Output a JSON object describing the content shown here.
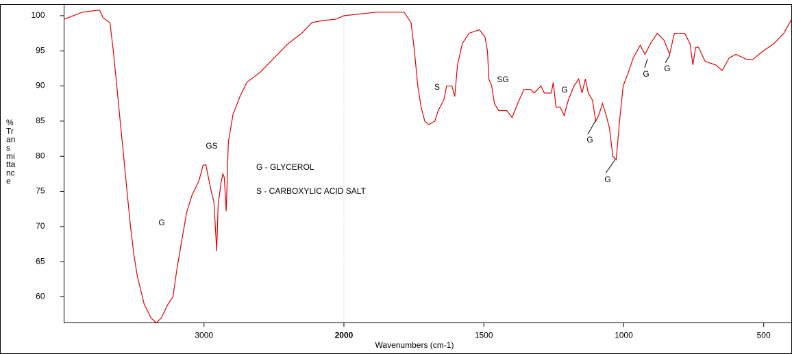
{
  "chart_data": {
    "type": "line",
    "xlabel": "Wavenumbers (cm-1)",
    "ylabel_lines": [
      "%",
      "Tr",
      "an",
      "s",
      "mi",
      "tta",
      "nc",
      "e"
    ],
    "xlim": [
      4000,
      400
    ],
    "x_scale_break": 2000,
    "xticks": [
      3000,
      2000,
      1500,
      1000,
      500
    ],
    "ylim": [
      56.3,
      101.6
    ],
    "yticks": [
      60,
      65,
      70,
      75,
      80,
      85,
      90,
      95,
      100
    ],
    "color": "#e00000",
    "x": [
      4000,
      3868,
      3746,
      3721,
      3672,
      3648,
      3623,
      3599,
      3574,
      3550,
      3525,
      3501,
      3477,
      3428,
      3379,
      3340,
      3305,
      3256,
      3222,
      3193,
      3159,
      3124,
      3085,
      3036,
      3007,
      2987,
      2948,
      2929,
      2909,
      2899,
      2880,
      2865,
      2855,
      2841,
      2826,
      2792,
      2743,
      2694,
      2596,
      2498,
      2400,
      2302,
      2229,
      2156,
      2058,
      2000,
      1883,
      1785,
      1760,
      1748,
      1736,
      1724,
      1711,
      1697,
      1675,
      1663,
      1643,
      1633,
      1614,
      1604,
      1594,
      1577,
      1553,
      1516,
      1496,
      1487,
      1482,
      1472,
      1462,
      1447,
      1418,
      1399,
      1379,
      1357,
      1333,
      1320,
      1296,
      1284,
      1259,
      1252,
      1242,
      1227,
      1213,
      1198,
      1178,
      1161,
      1149,
      1137,
      1127,
      1112,
      1100,
      1088,
      1076,
      1064,
      1051,
      1039,
      1027,
      1015,
      1002,
      983,
      966,
      941,
      924,
      905,
      880,
      856,
      836,
      819,
      782,
      763,
      753,
      743,
      733,
      709,
      672,
      648,
      623,
      599,
      562,
      538,
      501,
      464,
      428,
      400
    ],
    "values": [
      99.5,
      100.5,
      100.8,
      99.7,
      99,
      95,
      90,
      85,
      80,
      75,
      70,
      66,
      63,
      59,
      57,
      56.3,
      57,
      59,
      60,
      64,
      68,
      72,
      74.5,
      76.5,
      78.7,
      78.8,
      75,
      73.5,
      66.5,
      73,
      76,
      77.5,
      77,
      72.2,
      82,
      86,
      88.5,
      90.5,
      92,
      94,
      96,
      97.5,
      99,
      99.3,
      99.5,
      100,
      100.5,
      100.5,
      99,
      95,
      90,
      87,
      85,
      84.5,
      85,
      86.5,
      88,
      90,
      90,
      88.5,
      93,
      96,
      97.5,
      98,
      97,
      95,
      91,
      90,
      87.5,
      86.5,
      86.5,
      85.5,
      87.5,
      89.5,
      89.5,
      89,
      90,
      89,
      89,
      90.5,
      87,
      87,
      85.8,
      88,
      90,
      91,
      89,
      91,
      89,
      88,
      85,
      86,
      87.5,
      86,
      84,
      80,
      79.5,
      85,
      90,
      92,
      94,
      95.8,
      94.5,
      96,
      97.5,
      96.5,
      94.5,
      97.5,
      97.5,
      96,
      93,
      95.5,
      95.5,
      93.5,
      93,
      92.2,
      94,
      94.5,
      93.8,
      93.8,
      95,
      96,
      97.5,
      99.5
    ],
    "annotations": [
      "G",
      "GS",
      "G - GLYCEROL",
      "S - CARBOXYLIC ACID SALT",
      "S",
      "SG",
      "G",
      "G",
      "G",
      "G",
      "G"
    ]
  }
}
